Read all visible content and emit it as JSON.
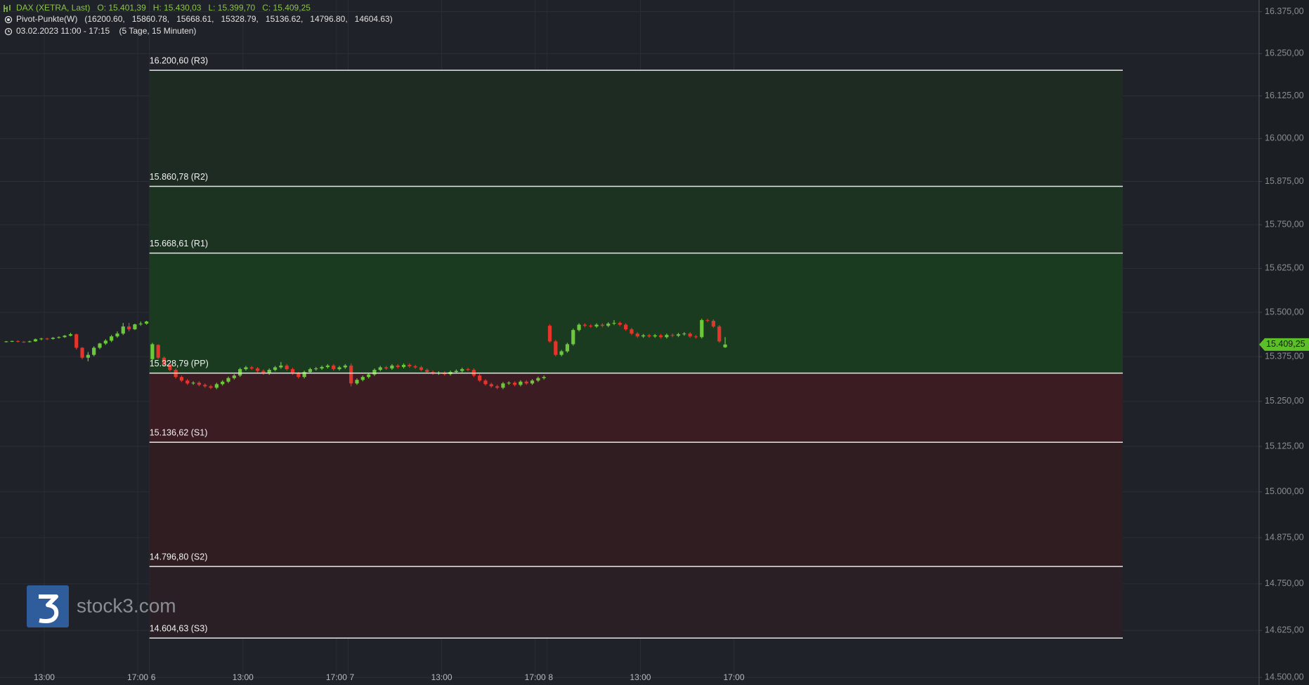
{
  "header": {
    "line1": "DAX (XETRA, Last)   O: 15.401,39   H: 15.430,03   L: 15.399,70   C: 15.409,25",
    "line2": "Pivot-Punkte(W)   (16200.60,   15860.78,   15668.61,   15328.79,   15136.62,   14796.80,   14604.63)",
    "line3": "03.02.2023 11:00 - 17:15    (5 Tage, 15 Minuten)"
  },
  "watermark": "stock3.com",
  "price_label": "15.409,25",
  "chart_data": {
    "type": "candlestick",
    "log_scale": true,
    "grid": true,
    "up_color": "#6cc83a",
    "down_color": "#e5342b",
    "ylim": [
      14480,
      16410
    ],
    "yticks": [
      {
        "value": 14500,
        "label": "14.500,00"
      },
      {
        "value": 14625,
        "label": "14.625,00"
      },
      {
        "value": 14750,
        "label": "14.750,00"
      },
      {
        "value": 14875,
        "label": "14.875,00"
      },
      {
        "value": 15000,
        "label": "15.000,00"
      },
      {
        "value": 15125,
        "label": "15.125,00"
      },
      {
        "value": 15250,
        "label": "15.250,00"
      },
      {
        "value": 15375,
        "label": "15.375,00"
      },
      {
        "value": 15500,
        "label": "15.500,00"
      },
      {
        "value": 15625,
        "label": "15.625,00"
      },
      {
        "value": 15750,
        "label": "15.750,00"
      },
      {
        "value": 15875,
        "label": "15.875,00"
      },
      {
        "value": 16000,
        "label": "16.000,00"
      },
      {
        "value": 16125,
        "label": "16.125,00"
      },
      {
        "value": 16250,
        "label": "16.250,00"
      },
      {
        "value": 16375,
        "label": "16.375,00"
      }
    ],
    "hour_labels": [
      "13:00",
      "17:00"
    ],
    "days": [
      {
        "label": null,
        "candles": [
          [
            15417,
            15419,
            15415,
            15418
          ],
          [
            15418,
            15420,
            15416,
            15419
          ],
          [
            15419,
            15421,
            15415,
            15417
          ],
          [
            15417,
            15419,
            15414,
            15416
          ],
          [
            15416,
            15420,
            15415,
            15418
          ],
          [
            15418,
            15426,
            15417,
            15424
          ],
          [
            15424,
            15428,
            15421,
            15426
          ],
          [
            15426,
            15428,
            15422,
            15425
          ],
          [
            15425,
            15430,
            15423,
            15428
          ],
          [
            15428,
            15432,
            15426,
            15430
          ],
          [
            15430,
            15436,
            15428,
            15434
          ],
          [
            15434,
            15442,
            15432,
            15438
          ],
          [
            15438,
            15440,
            15395,
            15400
          ],
          [
            15400,
            15402,
            15368,
            15372
          ],
          [
            15372,
            15388,
            15362,
            15380
          ],
          [
            15380,
            15404,
            15376,
            15400
          ],
          [
            15400,
            15414,
            15396,
            15412
          ],
          [
            15412,
            15424,
            15408,
            15420
          ],
          [
            15420,
            15436,
            15416,
            15432
          ],
          [
            15432,
            15446,
            15428,
            15440
          ],
          [
            15440,
            15470,
            15436,
            15460
          ],
          [
            15460,
            15470,
            15446,
            15452
          ],
          [
            15452,
            15468,
            15450,
            15466
          ],
          [
            15466,
            15474,
            15462,
            15468
          ],
          [
            15468,
            15476,
            15465,
            15474
          ]
        ]
      },
      {
        "label": "6",
        "candles": [
          [
            15368,
            15414,
            15364,
            15410
          ],
          [
            15408,
            15410,
            15368,
            15372
          ],
          [
            15372,
            15376,
            15348,
            15352
          ],
          [
            15352,
            15356,
            15334,
            15338
          ],
          [
            15338,
            15342,
            15314,
            15318
          ],
          [
            15318,
            15322,
            15304,
            15308
          ],
          [
            15308,
            15312,
            15296,
            15300
          ],
          [
            15300,
            15306,
            15296,
            15302
          ],
          [
            15302,
            15306,
            15292,
            15296
          ],
          [
            15296,
            15300,
            15288,
            15292
          ],
          [
            15292,
            15296,
            15284,
            15288
          ],
          [
            15288,
            15302,
            15284,
            15298
          ],
          [
            15298,
            15309,
            15294,
            15305
          ],
          [
            15305,
            15319,
            15301,
            15315
          ],
          [
            15315,
            15326,
            15311,
            15322
          ],
          [
            15322,
            15344,
            15318,
            15340
          ],
          [
            15340,
            15349,
            15336,
            15345
          ],
          [
            15345,
            15349,
            15338,
            15342
          ],
          [
            15342,
            15346,
            15331,
            15335
          ],
          [
            15335,
            15339,
            15324,
            15328
          ],
          [
            15328,
            15342,
            15324,
            15338
          ],
          [
            15338,
            15349,
            15334,
            15345
          ],
          [
            15345,
            15360,
            15341,
            15350
          ],
          [
            15350,
            15354,
            15336,
            15340
          ],
          [
            15340,
            15344,
            15324,
            15328
          ],
          [
            15328,
            15332,
            15314,
            15318
          ],
          [
            15318,
            15336,
            15314,
            15332
          ],
          [
            15332,
            15344,
            15328,
            15340
          ],
          [
            15340,
            15346,
            15336,
            15342
          ],
          [
            15342,
            15350,
            15338,
            15346
          ],
          [
            15346,
            15354,
            15342,
            15350
          ],
          [
            15350,
            15354,
            15336,
            15340
          ],
          [
            15340,
            15349,
            15336,
            15345
          ],
          [
            15345,
            15354,
            15341,
            15350
          ]
        ]
      },
      {
        "label": "7",
        "candles": [
          [
            15350,
            15356,
            15292,
            15300
          ],
          [
            15300,
            15314,
            15296,
            15310
          ],
          [
            15310,
            15322,
            15306,
            15318
          ],
          [
            15318,
            15329,
            15314,
            15325
          ],
          [
            15325,
            15342,
            15321,
            15338
          ],
          [
            15338,
            15349,
            15334,
            15345
          ],
          [
            15345,
            15349,
            15338,
            15342
          ],
          [
            15342,
            15354,
            15338,
            15350
          ],
          [
            15350,
            15354,
            15342,
            15346
          ],
          [
            15346,
            15356,
            15342,
            15352
          ],
          [
            15352,
            15356,
            15344,
            15348
          ],
          [
            15348,
            15352,
            15341,
            15345
          ],
          [
            15345,
            15349,
            15334,
            15338
          ],
          [
            15338,
            15342,
            15328,
            15332
          ],
          [
            15332,
            15336,
            15324,
            15328
          ],
          [
            15328,
            15334,
            15324,
            15330
          ],
          [
            15330,
            15334,
            15322,
            15326
          ],
          [
            15326,
            15336,
            15322,
            15332
          ],
          [
            15332,
            15339,
            15328,
            15335
          ],
          [
            15335,
            15344,
            15331,
            15340
          ],
          [
            15340,
            15344,
            15334,
            15338
          ],
          [
            15338,
            15342,
            15318,
            15322
          ],
          [
            15322,
            15326,
            15304,
            15308
          ],
          [
            15308,
            15312,
            15294,
            15298
          ],
          [
            15298,
            15302,
            15288,
            15292
          ],
          [
            15292,
            15296,
            15284,
            15288
          ],
          [
            15288,
            15304,
            15284,
            15300
          ],
          [
            15300,
            15306,
            15296,
            15302
          ],
          [
            15302,
            15306,
            15292,
            15296
          ],
          [
            15296,
            15309,
            15292,
            15305
          ],
          [
            15305,
            15309,
            15296,
            15300
          ],
          [
            15300,
            15312,
            15296,
            15308
          ],
          [
            15308,
            15319,
            15304,
            15315
          ],
          [
            15315,
            15322,
            15311,
            15318
          ]
        ]
      },
      {
        "label": "8",
        "candles": [
          [
            15462,
            15466,
            15414,
            15418
          ],
          [
            15418,
            15422,
            15376,
            15380
          ],
          [
            15380,
            15394,
            15376,
            15390
          ],
          [
            15390,
            15414,
            15386,
            15410
          ],
          [
            15410,
            15454,
            15406,
            15450
          ],
          [
            15450,
            15469,
            15446,
            15465
          ],
          [
            15465,
            15469,
            15458,
            15462
          ],
          [
            15462,
            15466,
            15456,
            15460
          ],
          [
            15460,
            15469,
            15456,
            15465
          ],
          [
            15465,
            15469,
            15458,
            15462
          ],
          [
            15462,
            15472,
            15458,
            15468
          ],
          [
            15468,
            15478,
            15464,
            15470
          ],
          [
            15470,
            15474,
            15461,
            15465
          ],
          [
            15465,
            15469,
            15448,
            15452
          ],
          [
            15452,
            15456,
            15436,
            15440
          ],
          [
            15440,
            15444,
            15428,
            15432
          ],
          [
            15432,
            15439,
            15428,
            15435
          ],
          [
            15435,
            15439,
            15428,
            15432
          ],
          [
            15432,
            15439,
            15428,
            15435
          ],
          [
            15435,
            15439,
            15426,
            15430
          ],
          [
            15430,
            15440,
            15426,
            15436
          ],
          [
            15436,
            15440,
            15430,
            15434
          ],
          [
            15434,
            15442,
            15430,
            15438
          ],
          [
            15438,
            15444,
            15434,
            15440
          ],
          [
            15440,
            15444,
            15428,
            15432
          ],
          [
            15432,
            15436,
            15426,
            15430
          ],
          [
            15430,
            15482,
            15426,
            15478
          ],
          [
            15478,
            15482,
            15472,
            15476
          ],
          [
            15476,
            15480,
            15456,
            15460
          ],
          [
            15460,
            15464,
            15414,
            15418
          ],
          [
            15401.39,
            15430.03,
            15399.7,
            15409.25
          ]
        ]
      }
    ],
    "pivots": [
      {
        "label": "16.200,60 (R3)",
        "value": 16200.6
      },
      {
        "label": "15.860,78 (R2)",
        "value": 15860.78
      },
      {
        "label": "15.668,61 (R1)",
        "value": 15668.61
      },
      {
        "label": "15.328,79 (PP)",
        "value": 15328.79
      },
      {
        "label": "15.136,62 (S1)",
        "value": 15136.62
      },
      {
        "label": "14.796,80 (S2)",
        "value": 14796.8
      },
      {
        "label": "14.604,63 (S3)",
        "value": 14604.63
      }
    ],
    "zone_colors": [
      "#1d2b22",
      "#1c3322",
      "#1b3b20",
      "#3a1c22",
      "#2f1d22",
      "#2a1f24"
    ]
  }
}
